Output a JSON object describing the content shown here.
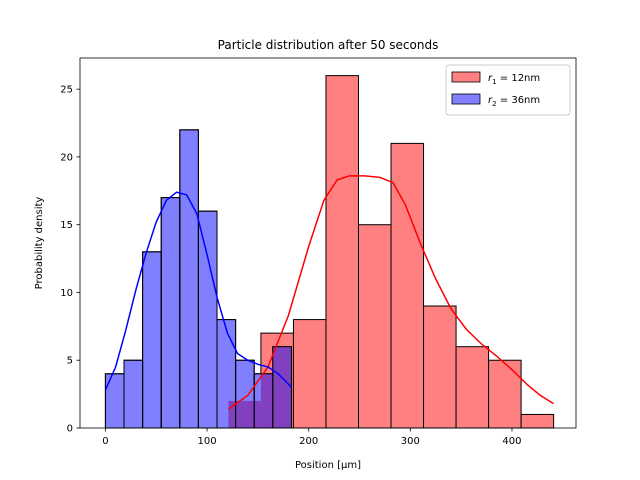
{
  "chart_data": {
    "type": "histogram",
    "title": "Particle distribution after 50 seconds",
    "xlabel": "Position [μm]",
    "ylabel": "Probability density",
    "xlim": [
      -25,
      463
    ],
    "ylim": [
      0,
      27.3
    ],
    "xticks": [
      0,
      100,
      200,
      300,
      400
    ],
    "yticks": [
      0,
      5,
      10,
      15,
      20,
      25
    ],
    "grid": false,
    "legend_position": "top-right",
    "series": [
      {
        "name": "r1 = 12nm",
        "label_var": "r",
        "label_sub": "1",
        "label_rest": " = 12nm",
        "fill_color": "#ff8080",
        "line_color": "#ff0000",
        "bin_edges": [
          121,
          153,
          185,
          217,
          249,
          281,
          313,
          345,
          377,
          409,
          441
        ],
        "counts": [
          2,
          7,
          8,
          26,
          15,
          21,
          9,
          6,
          5,
          1
        ],
        "kde": [
          [
            121,
            1.4
          ],
          [
            140,
            2.4
          ],
          [
            160,
            4.5
          ],
          [
            180,
            8.3
          ],
          [
            200,
            13.4
          ],
          [
            215,
            16.8
          ],
          [
            228,
            18.3
          ],
          [
            240,
            18.6
          ],
          [
            255,
            18.6
          ],
          [
            270,
            18.5
          ],
          [
            283,
            18.1
          ],
          [
            295,
            16.5
          ],
          [
            310,
            13.6
          ],
          [
            325,
            11.0
          ],
          [
            340,
            8.8
          ],
          [
            355,
            7.3
          ],
          [
            370,
            6.2
          ],
          [
            385,
            5.3
          ],
          [
            400,
            4.3
          ],
          [
            415,
            3.2
          ],
          [
            428,
            2.4
          ],
          [
            441,
            1.8
          ]
        ]
      },
      {
        "name": "r2 = 36nm",
        "label_var": "r",
        "label_sub": "2",
        "label_rest": " = 36nm",
        "fill_color": "#8080ff",
        "line_color": "#0000ff",
        "bin_edges": [
          0,
          18.3,
          36.6,
          54.9,
          73.2,
          91.5,
          109.8,
          128.1,
          146.4,
          164.7,
          183
        ],
        "counts": [
          4,
          5,
          13,
          17,
          22,
          16,
          8,
          5,
          4,
          6
        ],
        "kde": [
          [
            0,
            2.8
          ],
          [
            10,
            4.5
          ],
          [
            20,
            7.2
          ],
          [
            30,
            10.2
          ],
          [
            40,
            12.9
          ],
          [
            50,
            15.2
          ],
          [
            60,
            16.8
          ],
          [
            70,
            17.4
          ],
          [
            80,
            17.2
          ],
          [
            90,
            15.8
          ],
          [
            100,
            12.8
          ],
          [
            110,
            9.6
          ],
          [
            120,
            7.0
          ],
          [
            130,
            5.5
          ],
          [
            140,
            5.0
          ],
          [
            150,
            4.7
          ],
          [
            160,
            4.5
          ],
          [
            170,
            4.0
          ],
          [
            178,
            3.4
          ],
          [
            183,
            3.0
          ]
        ]
      }
    ]
  }
}
